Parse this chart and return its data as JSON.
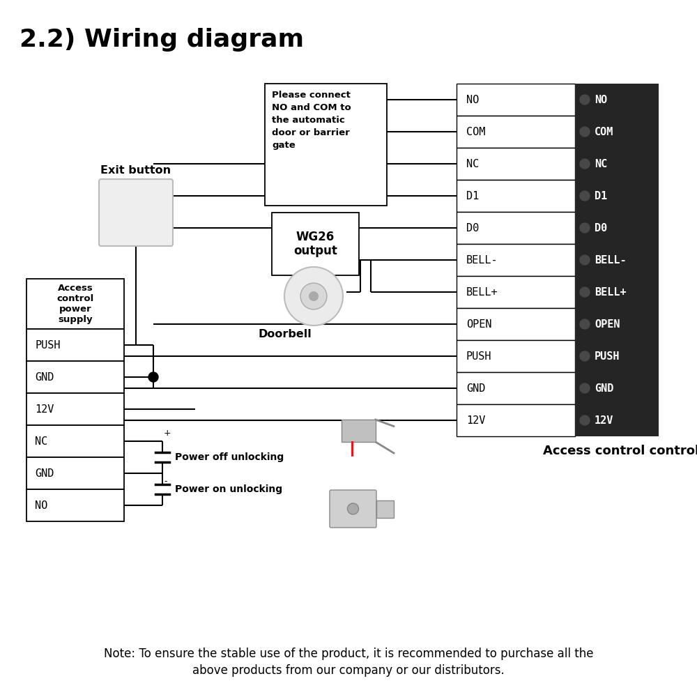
{
  "title": "2.2) Wiring diagram",
  "title_fontsize": 26,
  "title_fontweight": "bold",
  "bg_color": "#ffffff",
  "controller_labels": [
    "NO",
    "COM",
    "NC",
    "D1",
    "D0",
    "BELL-",
    "BELL+",
    "OPEN",
    "PUSH",
    "GND",
    "12V"
  ],
  "power_supply_header": "Access\ncontrol\npower\nsupply",
  "power_supply_rows": [
    "PUSH",
    "GND",
    "12V",
    "NC",
    "GND",
    "NO"
  ],
  "note_line1": "Note: To ensure the stable use of the product, it is recommended to purchase all the",
  "note_line2": "above products from our company or our distributors.",
  "annotation_box1": "Please connect\nNO and COM to\nthe automatic\ndoor or barrier\ngate",
  "annotation_wg26": "WG26\noutput",
  "label_exit_button": "Exit button",
  "label_doorbell": "Doorbell",
  "label_acc_controller": "Access control controller",
  "label_power_off": "Power off unlocking",
  "label_power_on": "Power on unlocking"
}
